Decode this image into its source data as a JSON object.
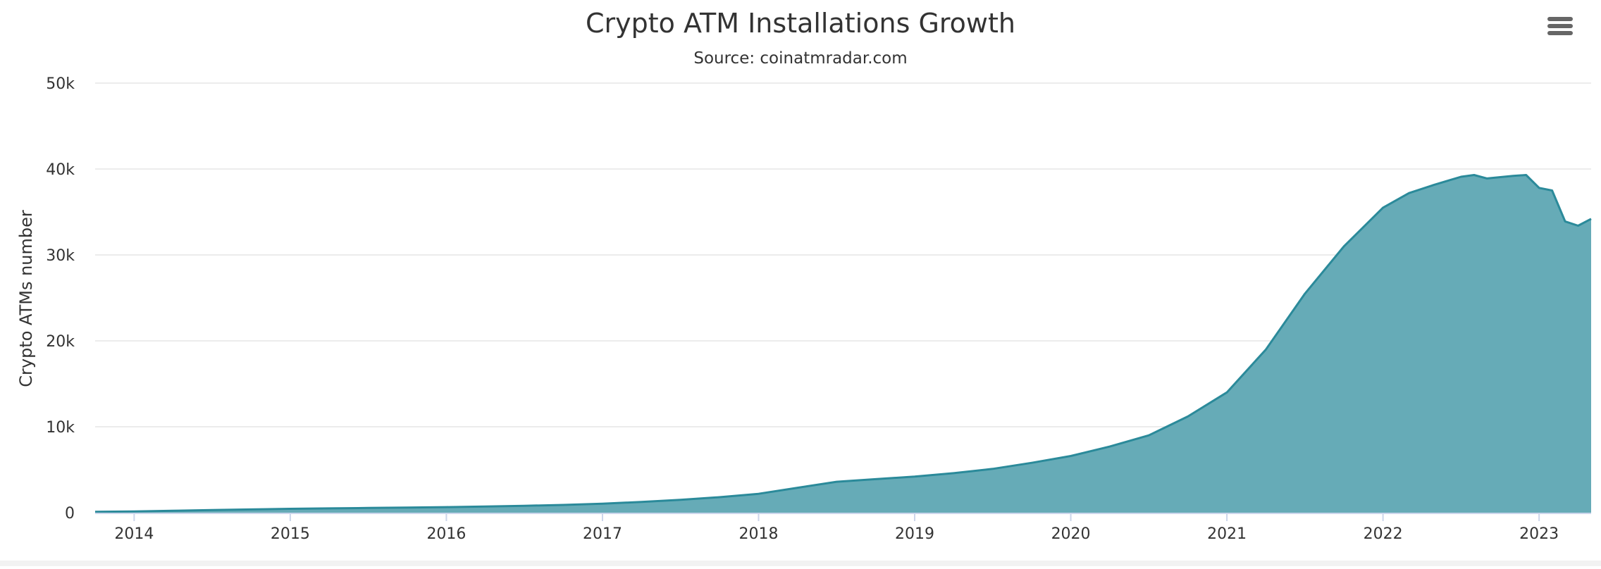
{
  "menu": {
    "icon": "hamburger-menu-icon"
  },
  "chart_data": {
    "type": "area",
    "title": "Crypto ATM Installations Growth",
    "subtitle": "Source: coinatmradar.com",
    "xlabel": "",
    "ylabel": "Crypto ATMs number",
    "x_ticks": [
      "2014",
      "2015",
      "2016",
      "2017",
      "2018",
      "2019",
      "2020",
      "2021",
      "2022",
      "2023"
    ],
    "y_ticks": [
      "0",
      "10k",
      "20k",
      "30k",
      "40k",
      "50k"
    ],
    "xlim": [
      "2013-10-01",
      "2023-05-01"
    ],
    "ylim": [
      0,
      50000
    ],
    "grid": true,
    "legend": false,
    "colors": {
      "fill": "#66abb7",
      "line": "#2b8a9a",
      "grid": "#e6e6e6",
      "axis": "#ccd6eb",
      "text": "#333333"
    },
    "series": [
      {
        "x": [
          "2013-10-01",
          "2014-01-01",
          "2014-04-01",
          "2014-07-01",
          "2014-10-01",
          "2015-01-01",
          "2015-04-01",
          "2015-07-01",
          "2015-10-01",
          "2016-01-01",
          "2016-04-01",
          "2016-07-01",
          "2016-10-01",
          "2017-01-01",
          "2017-04-01",
          "2017-07-01",
          "2017-10-01",
          "2018-01-01",
          "2018-04-01",
          "2018-07-01",
          "2018-10-01",
          "2019-01-01",
          "2019-04-01",
          "2019-07-01",
          "2019-10-01",
          "2020-01-01",
          "2020-04-01",
          "2020-07-01",
          "2020-10-01",
          "2021-01-01",
          "2021-04-01",
          "2021-07-01",
          "2021-10-01",
          "2022-01-01",
          "2022-03-01",
          "2022-05-01",
          "2022-07-01",
          "2022-08-01",
          "2022-09-01",
          "2022-11-01",
          "2022-12-01",
          "2023-01-01",
          "2023-02-01",
          "2023-03-01",
          "2023-04-01",
          "2023-05-01"
        ],
        "values": [
          100,
          150,
          220,
          300,
          380,
          450,
          500,
          550,
          600,
          650,
          720,
          800,
          900,
          1050,
          1250,
          1500,
          1800,
          2200,
          2900,
          3600,
          3900,
          4200,
          4600,
          5100,
          5800,
          6600,
          7700,
          9000,
          11200,
          14000,
          19000,
          25500,
          31000,
          35500,
          37200,
          38200,
          39100,
          39300,
          38900,
          39200,
          39300,
          37800,
          37500,
          33900,
          33400,
          34200
        ]
      }
    ]
  }
}
